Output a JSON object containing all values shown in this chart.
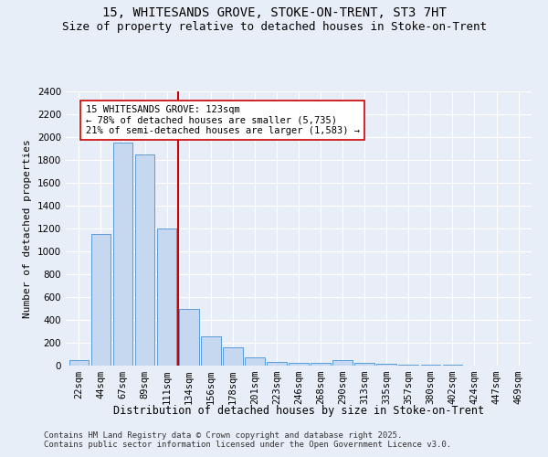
{
  "title1": "15, WHITESANDS GROVE, STOKE-ON-TRENT, ST3 7HT",
  "title2": "Size of property relative to detached houses in Stoke-on-Trent",
  "xlabel": "Distribution of detached houses by size in Stoke-on-Trent",
  "ylabel": "Number of detached properties",
  "categories": [
    "22sqm",
    "44sqm",
    "67sqm",
    "89sqm",
    "111sqm",
    "134sqm",
    "156sqm",
    "178sqm",
    "201sqm",
    "223sqm",
    "246sqm",
    "268sqm",
    "290sqm",
    "313sqm",
    "335sqm",
    "357sqm",
    "380sqm",
    "402sqm",
    "424sqm",
    "447sqm",
    "469sqm"
  ],
  "values": [
    50,
    1150,
    1950,
    1850,
    1200,
    500,
    260,
    160,
    75,
    30,
    25,
    25,
    50,
    25,
    20,
    12,
    8,
    6,
    4,
    2,
    1
  ],
  "bar_color": "#c5d8f0",
  "bar_edge_color": "#5b9bd5",
  "bg_color": "#e8eef7",
  "annotation_text": "15 WHITESANDS GROVE: 123sqm\n← 78% of detached houses are smaller (5,735)\n21% of semi-detached houses are larger (1,583) →",
  "vline_x": 4.5,
  "vline_color": "#cc0000",
  "annotation_box_color": "#ffffff",
  "annotation_box_edge": "#cc0000",
  "footer1": "Contains HM Land Registry data © Crown copyright and database right 2025.",
  "footer2": "Contains public sector information licensed under the Open Government Licence v3.0.",
  "ylim": [
    0,
    2400
  ],
  "yticks": [
    0,
    200,
    400,
    600,
    800,
    1000,
    1200,
    1400,
    1600,
    1800,
    2000,
    2200,
    2400
  ],
  "title1_fontsize": 10,
  "title2_fontsize": 9,
  "xlabel_fontsize": 8.5,
  "ylabel_fontsize": 8,
  "tick_fontsize": 7.5,
  "footer_fontsize": 6.5,
  "ann_fontsize": 7.5
}
